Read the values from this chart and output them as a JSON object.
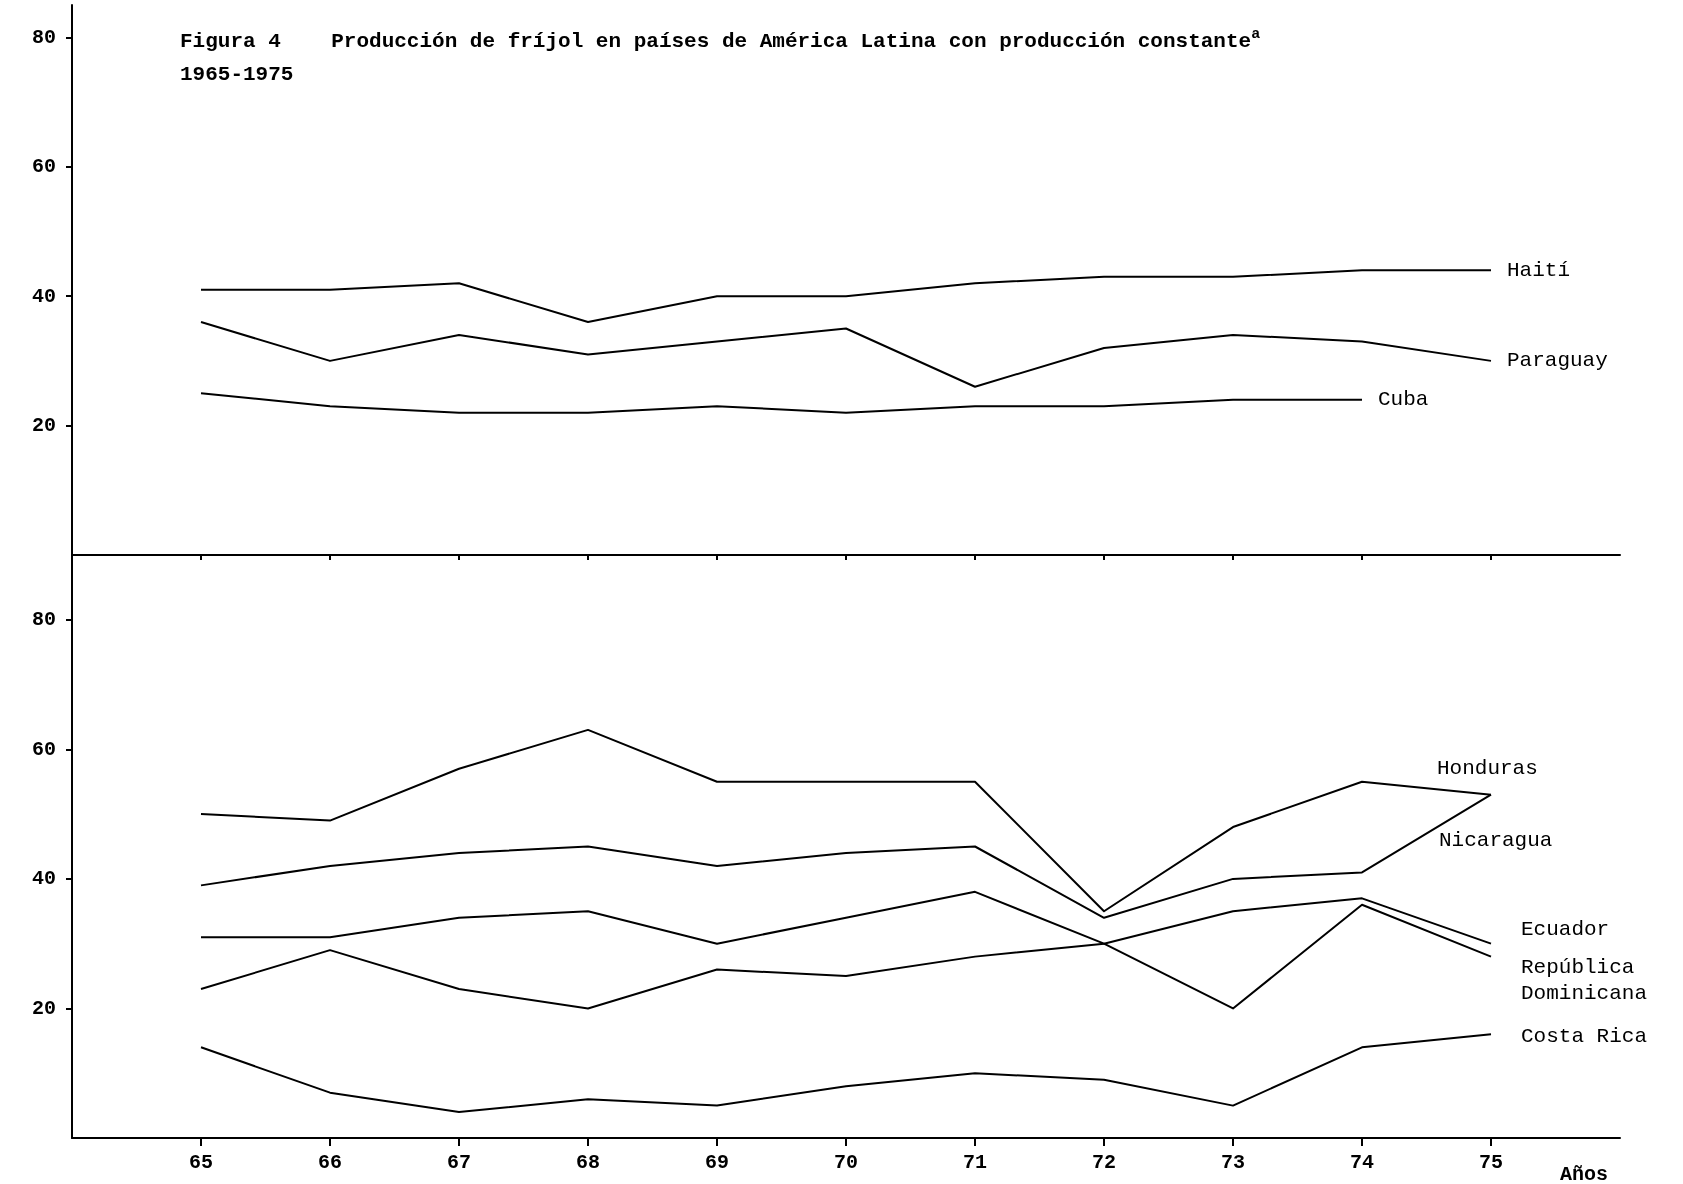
{
  "chart_data": [
    {
      "type": "line",
      "title": "Figura 4    Producción de fríjol en países de América Latina con producción constante$^{a}$",
      "subtitle": "1965-1975",
      "x": [
        65,
        66,
        67,
        68,
        69,
        70,
        71,
        72,
        73,
        74,
        75
      ],
      "series": [
        {
          "name": "Haití",
          "color": "#000000",
          "values": [
            41,
            41,
            42,
            36,
            40,
            40,
            42,
            43,
            43,
            44,
            44
          ]
        },
        {
          "name": "Paraguay",
          "color": "#000000",
          "values": [
            36,
            30,
            34,
            31,
            33,
            35,
            26,
            32,
            34,
            33,
            30
          ]
        },
        {
          "name": "Cuba",
          "color": "#000000",
          "values": [
            25,
            23,
            22,
            22,
            23,
            22,
            23,
            23,
            24,
            24,
            null
          ]
        }
      ],
      "xlim": [
        64,
        76
      ],
      "xticks": [
        65,
        66,
        67,
        68,
        69,
        70,
        71,
        72,
        73,
        74,
        75
      ],
      "ylim": [
        0,
        85
      ],
      "yticks": [
        20,
        40,
        60,
        80
      ],
      "tick_labels": "y",
      "grid": false,
      "legend": false,
      "marker": "none",
      "line_style": "solid"
    },
    {
      "type": "line",
      "xlabel": "Años",
      "x": [
        65,
        66,
        67,
        68,
        69,
        70,
        71,
        72,
        73,
        74,
        75
      ],
      "series": [
        {
          "name": "Honduras",
          "color": "#000000",
          "values": [
            50,
            49,
            57,
            63,
            55,
            55,
            55,
            35,
            48,
            55,
            53
          ]
        },
        {
          "name": "Nicaragua",
          "color": "#000000",
          "values": [
            39,
            42,
            44,
            45,
            42,
            44,
            45,
            34,
            40,
            41,
            53
          ]
        },
        {
          "name": "Ecuador",
          "color": "#000000",
          "values": [
            23,
            29,
            23,
            20,
            26,
            25,
            28,
            30,
            35,
            37,
            30
          ]
        },
        {
          "name": "República Dominicana",
          "color": "#000000",
          "values": [
            31,
            31,
            34,
            35,
            30,
            34,
            38,
            30,
            20,
            36,
            28
          ]
        },
        {
          "name": "Costa Rica",
          "color": "#000000",
          "values": [
            14,
            7,
            4,
            6,
            5,
            8,
            10,
            9,
            5,
            14,
            16
          ]
        }
      ],
      "xlim": [
        64,
        76
      ],
      "xticks": [
        65,
        66,
        67,
        68,
        69,
        70,
        71,
        72,
        73,
        74,
        75
      ],
      "ylim": [
        0,
        90
      ],
      "yticks": [
        20,
        40,
        60,
        80
      ],
      "grid": false,
      "legend": false,
      "marker": "none",
      "line_style": "solid"
    }
  ]
}
